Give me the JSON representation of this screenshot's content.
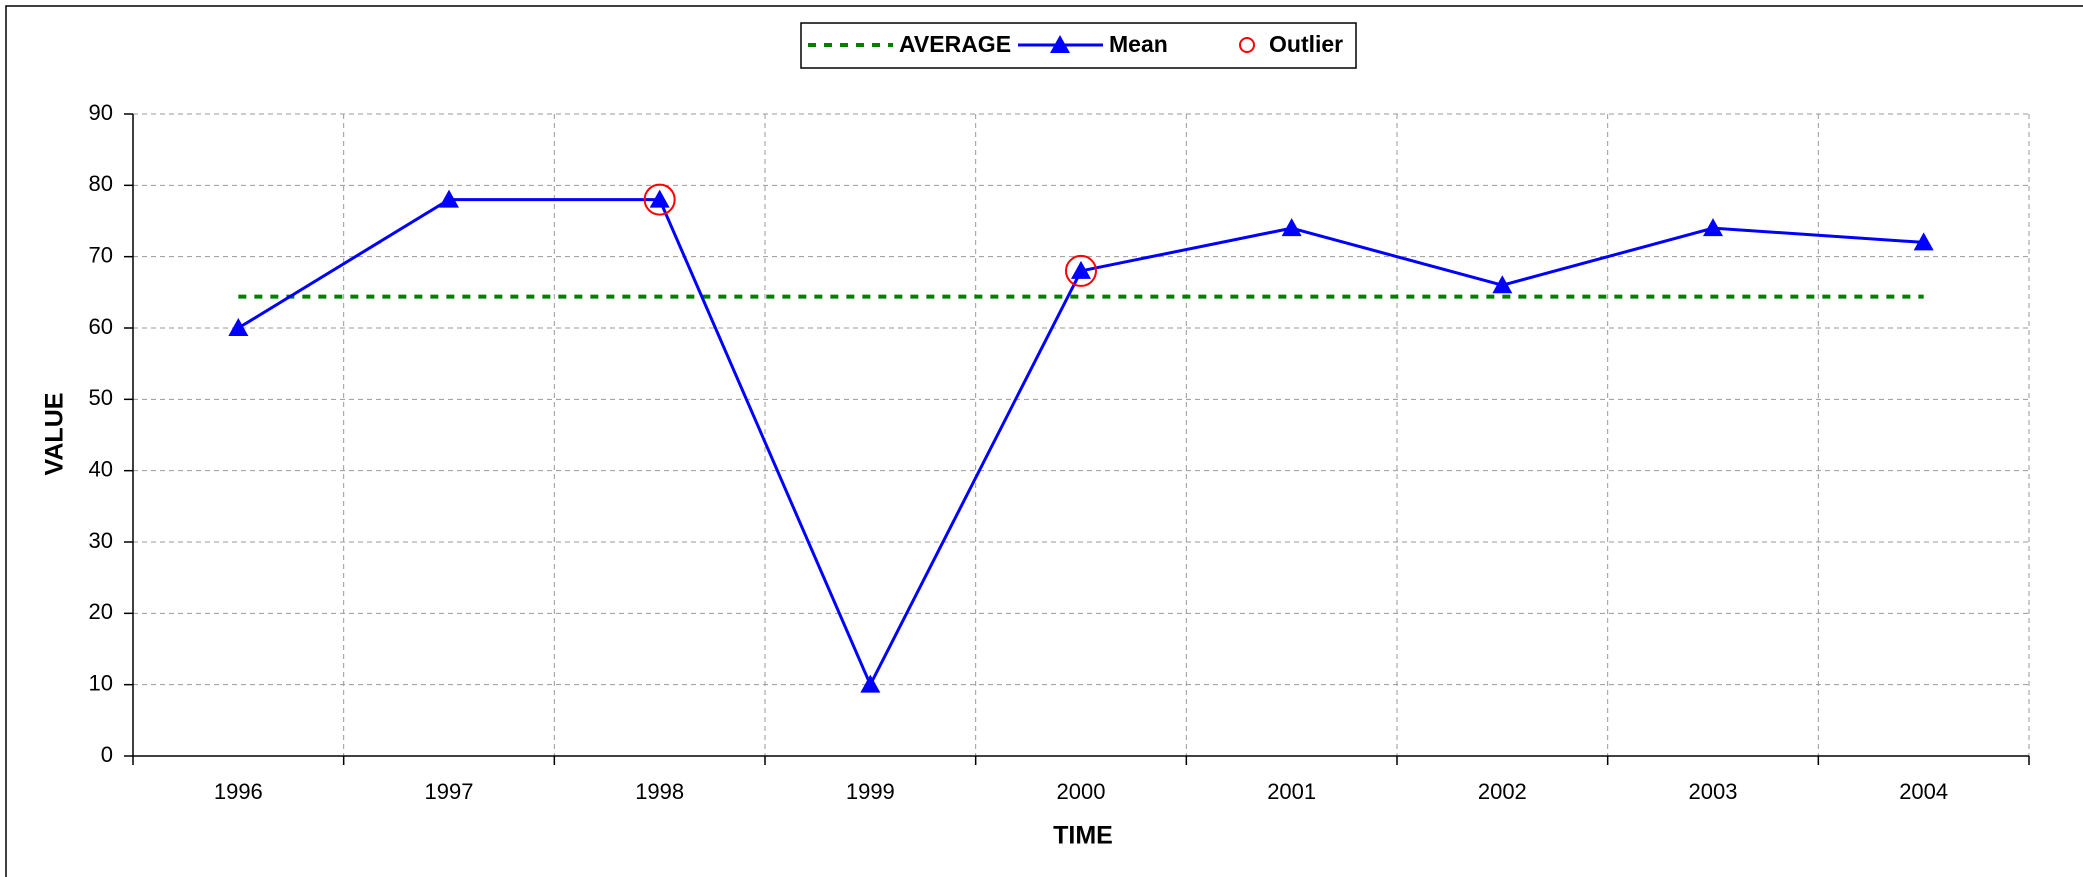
{
  "chart_data": {
    "type": "line",
    "x_label": "TIME",
    "y_label": "VALUE",
    "categories": [
      "1996",
      "1997",
      "1998",
      "1999",
      "2000",
      "2001",
      "2002",
      "2003",
      "2004"
    ],
    "series": [
      {
        "name": "AVERAGE",
        "color": "#008000",
        "line": "dashed",
        "marker": "none",
        "values": [
          64.4,
          64.4,
          64.4,
          64.4,
          64.4,
          64.4,
          64.4,
          64.4,
          64.4
        ]
      },
      {
        "name": "Mean",
        "color": "#0000ff",
        "line": "solid",
        "marker": "triangle",
        "values": [
          60,
          78,
          78,
          10,
          68,
          74,
          66,
          74,
          72
        ]
      },
      {
        "name": "Outlier",
        "color": "#ff0000",
        "line": "none",
        "marker": "circle",
        "values": [
          null,
          null,
          78,
          null,
          68,
          null,
          null,
          null,
          null
        ]
      }
    ],
    "ylim": [
      0,
      90
    ],
    "yticks": [
      0,
      10,
      20,
      30,
      40,
      50,
      60,
      70,
      80,
      90
    ],
    "grid": true,
    "legend": "top"
  }
}
